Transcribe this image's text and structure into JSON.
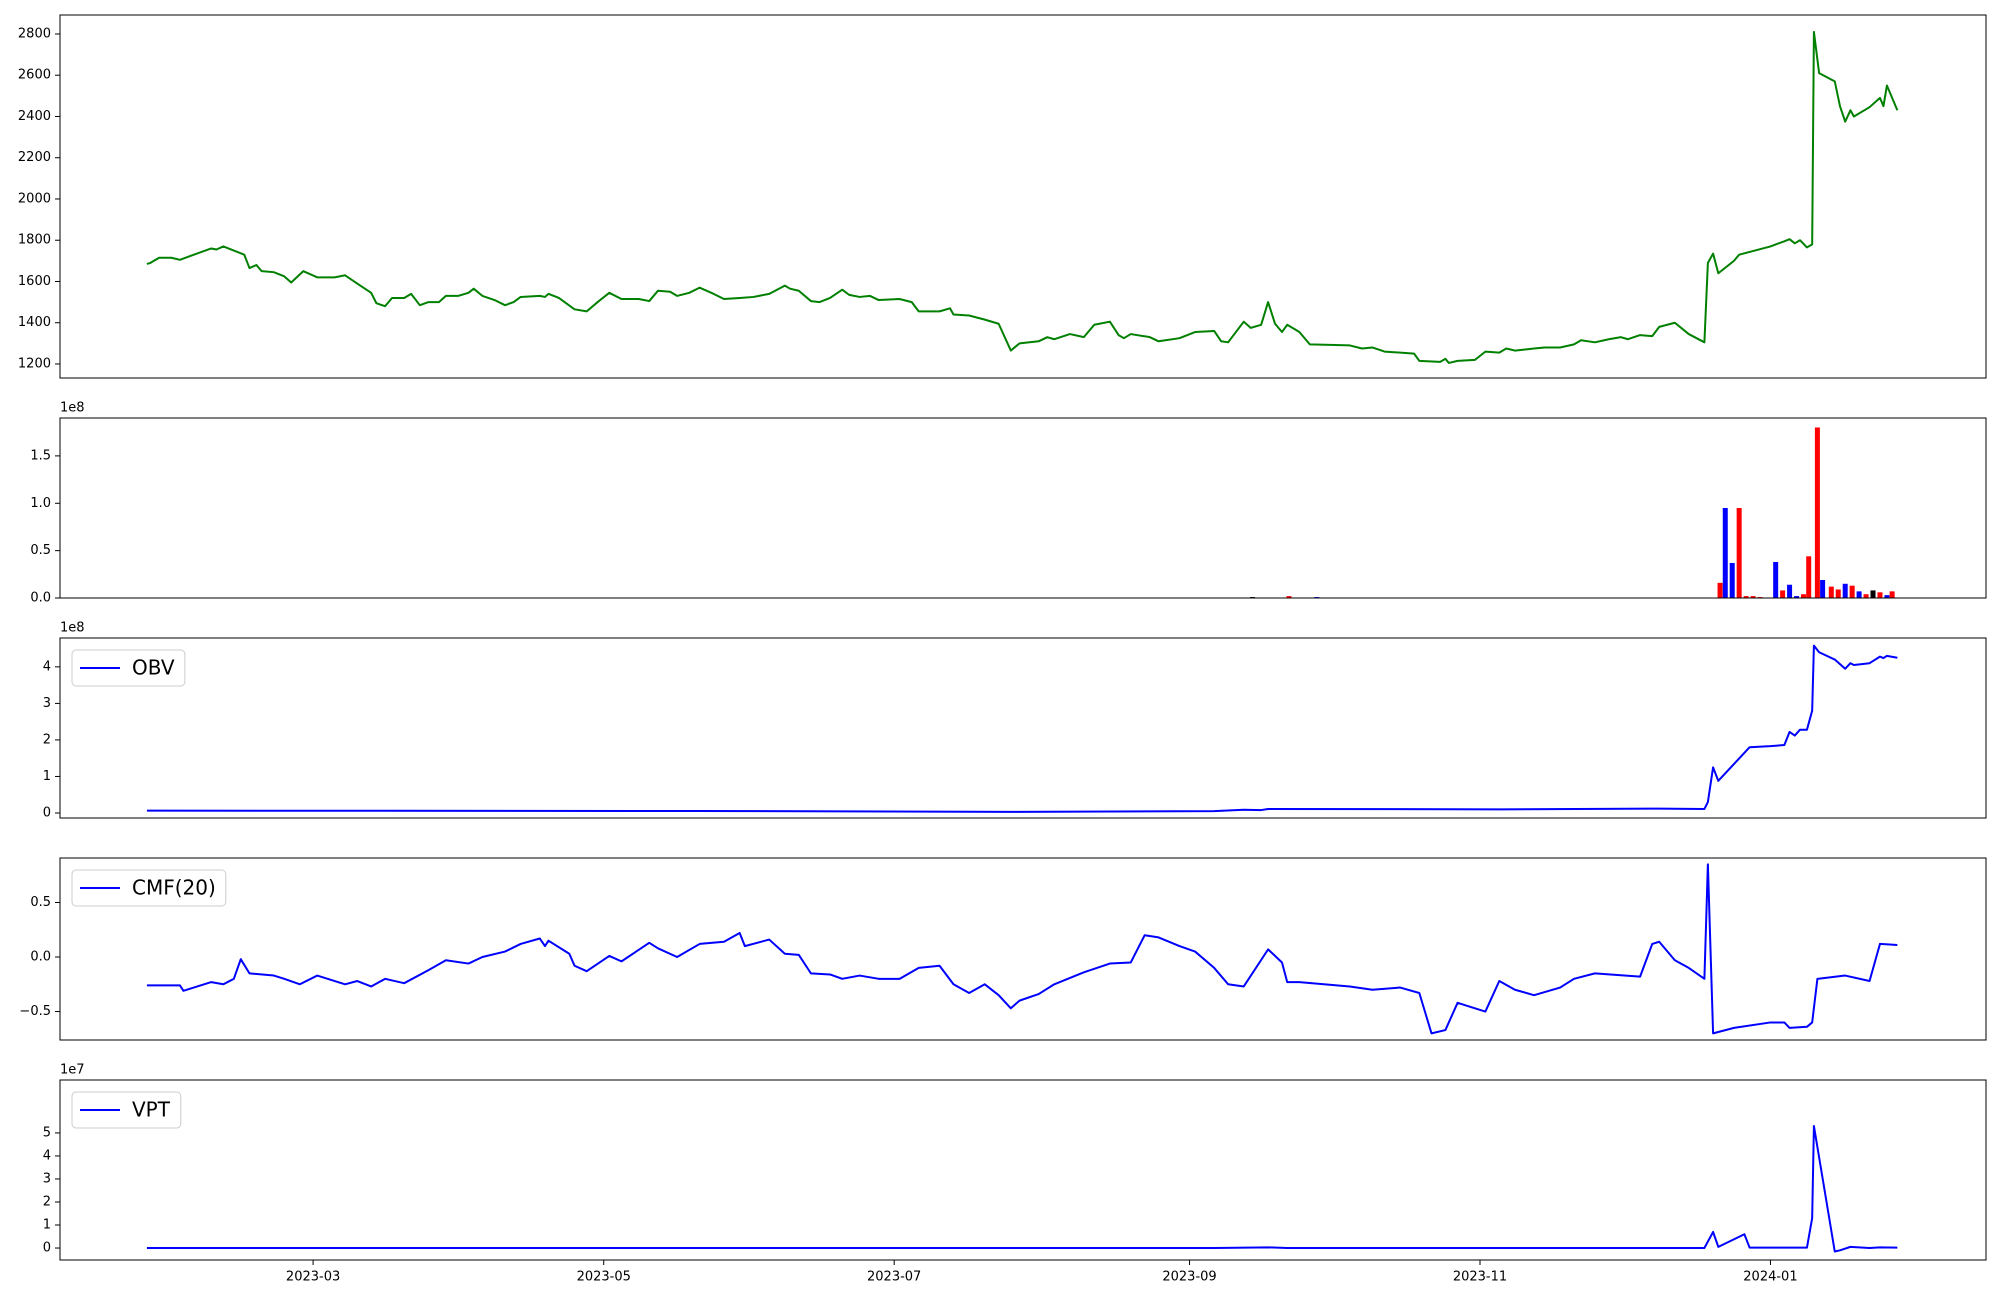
{
  "chart_data": [
    {
      "type": "line",
      "xlim": [
        2023.016,
        2024.124
      ],
      "ylim": [
        1132,
        2892
      ],
      "yticks": [
        1200,
        1400,
        1600,
        1800,
        2000,
        2200,
        2400,
        2600,
        2800
      ],
      "x": [
        2023.066,
        2023.068,
        2023.073,
        2023.08,
        2023.085,
        2023.093,
        2023.103,
        2023.106,
        2023.11,
        2023.122,
        2023.125,
        2023.129,
        2023.132,
        2023.139,
        2023.145,
        2023.149,
        2023.156,
        2023.164,
        2023.174,
        2023.18,
        2023.187,
        2023.195,
        2023.198,
        2023.203,
        2023.207,
        2023.214,
        2023.218,
        2023.223,
        2023.228,
        2023.234,
        2023.238,
        2023.245,
        2023.251,
        2023.254,
        2023.259,
        2023.266,
        2023.272,
        2023.277,
        2023.281,
        2023.292,
        2023.295,
        2023.297,
        2023.303,
        2023.312,
        2023.319,
        2023.326,
        2023.332,
        2023.339,
        2023.349,
        2023.355,
        2023.36,
        2023.367,
        2023.371,
        2023.378,
        2023.384,
        2023.392,
        2023.398,
        2023.407,
        2023.415,
        2023.424,
        2023.433,
        2023.436,
        2023.441,
        2023.448,
        2023.453,
        2023.459,
        2023.466,
        2023.47,
        2023.476,
        2023.482,
        2023.487,
        2023.499,
        2023.506,
        2023.51,
        2023.522,
        2023.528,
        2023.53,
        2023.539,
        2023.548,
        2023.556,
        2023.563,
        2023.568,
        2023.579,
        2023.584,
        2023.588,
        2023.597,
        2023.605,
        2023.611,
        2023.62,
        2023.625,
        2023.628,
        2023.632,
        2023.643,
        2023.648,
        2023.66,
        2023.669,
        2023.68,
        2023.684,
        2023.688,
        2023.697,
        2023.701,
        2023.707,
        2023.711,
        2023.715,
        2023.719,
        2023.722,
        2023.729,
        2023.735,
        2023.758,
        2023.765,
        2023.771,
        2023.778,
        2023.787,
        2023.795,
        2023.798,
        2023.81,
        2023.813,
        2023.815,
        2023.82,
        2023.83,
        2023.836,
        2023.844,
        2023.848,
        2023.853,
        2023.864,
        2023.87,
        2023.879,
        2023.887,
        2023.891,
        2023.899,
        2023.907,
        2023.914,
        2023.918,
        2023.925,
        2023.932,
        2023.936,
        2023.945,
        2023.953,
        2023.962,
        2023.964,
        2023.967,
        2023.97,
        2023.979,
        2023.982,
        2024.0,
        2024.008,
        2024.011,
        2024.014,
        2024.017,
        2024.021,
        2024.024,
        2024.025,
        2024.028,
        2024.037,
        2024.04,
        2024.043,
        2024.046,
        2024.048,
        2024.057,
        2024.063,
        2024.065,
        2024.067,
        2024.073
      ],
      "series": [
        {
          "color": "green",
          "values": [
            1685,
            1690,
            1715,
            1715,
            1705,
            1730,
            1760,
            1755,
            1770,
            1730,
            1665,
            1680,
            1650,
            1645,
            1625,
            1595,
            1650,
            1620,
            1620,
            1630,
            1590,
            1545,
            1495,
            1480,
            1520,
            1520,
            1540,
            1485,
            1500,
            1500,
            1530,
            1530,
            1545,
            1565,
            1530,
            1510,
            1485,
            1500,
            1525,
            1530,
            1525,
            1540,
            1520,
            1465,
            1455,
            1505,
            1545,
            1515,
            1515,
            1505,
            1555,
            1550,
            1530,
            1545,
            1570,
            1540,
            1515,
            1520,
            1525,
            1540,
            1580,
            1565,
            1555,
            1505,
            1500,
            1520,
            1560,
            1535,
            1525,
            1530,
            1510,
            1515,
            1500,
            1455,
            1455,
            1470,
            1440,
            1435,
            1415,
            1395,
            1265,
            1300,
            1310,
            1330,
            1320,
            1345,
            1330,
            1390,
            1405,
            1340,
            1325,
            1345,
            1330,
            1310,
            1325,
            1355,
            1360,
            1310,
            1305,
            1405,
            1375,
            1390,
            1500,
            1395,
            1355,
            1390,
            1355,
            1295,
            1290,
            1275,
            1280,
            1260,
            1255,
            1250,
            1215,
            1210,
            1225,
            1205,
            1215,
            1220,
            1260,
            1255,
            1275,
            1265,
            1275,
            1280,
            1280,
            1295,
            1315,
            1305,
            1320,
            1330,
            1320,
            1340,
            1335,
            1380,
            1400,
            1345,
            1305,
            1690,
            1735,
            1640,
            1700,
            1730,
            1770,
            1795,
            1805,
            1785,
            1800,
            1765,
            1780,
            2810,
            2610,
            2570,
            2450,
            2375,
            2430,
            2400,
            2445,
            2490,
            2450,
            2550,
            2430
          ]
        }
      ]
    },
    {
      "type": "bar",
      "xlim": [
        2023.016,
        2024.124
      ],
      "ylim": [
        0,
        190000000
      ],
      "offset_text": "1e8",
      "yticks": [
        {
          "value": 0,
          "label": "0.0"
        },
        {
          "value": 50000000,
          "label": "0.5"
        },
        {
          "value": 100000000,
          "label": "1.0"
        },
        {
          "value": 150000000,
          "label": "1.5"
        }
      ],
      "x": [
        2023.702,
        2023.723,
        2023.739,
        2023.971,
        2023.974,
        2023.978,
        2023.982,
        2023.986,
        2023.99,
        2023.994,
        2024.003,
        2024.007,
        2024.011,
        2024.015,
        2024.019,
        2024.022,
        2024.027,
        2024.03,
        2024.035,
        2024.039,
        2024.043,
        2024.047,
        2024.051,
        2024.055,
        2024.059,
        2024.063,
        2024.067,
        2024.07
      ],
      "values": [
        1000000,
        2000000,
        1000000,
        16000000,
        95000000,
        37000000,
        95000000,
        2000000,
        2000000,
        1000000,
        38000000,
        8000000,
        14000000,
        2000000,
        4000000,
        44000000,
        180000000,
        19000000,
        12000000,
        9000000,
        15000000,
        13000000,
        7000000,
        4000000,
        8000000,
        6000000,
        3000000,
        7000000
      ],
      "colors": [
        "black",
        "red",
        "blue",
        "red",
        "blue",
        "blue",
        "red",
        "red",
        "red",
        "red",
        "blue",
        "red",
        "blue",
        "blue",
        "red",
        "red",
        "red",
        "blue",
        "red",
        "red",
        "blue",
        "red",
        "blue",
        "red",
        "black",
        "red",
        "blue",
        "red"
      ]
    },
    {
      "type": "line",
      "xlim": [
        2023.016,
        2024.124
      ],
      "ylim": [
        -13700000,
        479000000
      ],
      "offset_text": "1e8",
      "legend": "upper left",
      "yticks": [
        {
          "value": 0,
          "label": "0"
        },
        {
          "value": 100000000,
          "label": "1"
        },
        {
          "value": 200000000,
          "label": "2"
        },
        {
          "value": 300000000,
          "label": "3"
        },
        {
          "value": 400000000,
          "label": "4"
        }
      ],
      "x": [
        2023.066,
        2023.384,
        2023.563,
        2023.68,
        2023.697,
        2023.707,
        2023.711,
        2023.844,
        2023.936,
        2023.962,
        2023.964,
        2023.967,
        2023.97,
        2023.988,
        2024.0,
        2024.008,
        2024.011,
        2024.014,
        2024.017,
        2024.021,
        2024.024,
        2024.025,
        2024.028,
        2024.037,
        2024.043,
        2024.046,
        2024.048,
        2024.057,
        2024.063,
        2024.065,
        2024.067,
        2024.073
      ],
      "series": [
        {
          "name": "OBV",
          "color": "blue",
          "values": [
            6500000,
            5500000,
            3000000,
            5000000,
            9000000,
            8000000,
            11000000,
            10000000,
            12000000,
            11000000,
            30000000,
            125000000,
            88000000,
            180000000,
            183000000,
            186000000,
            222000000,
            212000000,
            228000000,
            228000000,
            280000000,
            458000000,
            440000000,
            420000000,
            395000000,
            410000000,
            405000000,
            410000000,
            428000000,
            424000000,
            430000000,
            425000000
          ]
        }
      ]
    },
    {
      "type": "line",
      "xlim": [
        2023.016,
        2024.124
      ],
      "ylim": [
        -0.761,
        0.908
      ],
      "legend": "upper left",
      "yticks": [
        {
          "value": -0.5,
          "label": "−0.5"
        },
        {
          "value": 0,
          "label": "0.0"
        },
        0.5
      ],
      "x": [
        2023.066,
        2023.085,
        2023.087,
        2023.103,
        2023.11,
        2023.116,
        2023.12,
        2023.125,
        2023.139,
        2023.145,
        2023.154,
        2023.164,
        2023.18,
        2023.187,
        2023.195,
        2023.203,
        2023.214,
        2023.228,
        2023.238,
        2023.251,
        2023.259,
        2023.272,
        2023.281,
        2023.292,
        2023.295,
        2023.297,
        2023.309,
        2023.312,
        2023.319,
        2023.332,
        2023.339,
        2023.355,
        2023.36,
        2023.371,
        2023.384,
        2023.398,
        2023.407,
        2023.41,
        2023.424,
        2023.433,
        2023.441,
        2023.448,
        2023.459,
        2023.466,
        2023.476,
        2023.487,
        2023.499,
        2023.51,
        2023.522,
        2023.53,
        2023.539,
        2023.548,
        2023.556,
        2023.563,
        2023.568,
        2023.579,
        2023.588,
        2023.605,
        2023.62,
        2023.632,
        2023.64,
        2023.648,
        2023.66,
        2023.669,
        2023.68,
        2023.688,
        2023.697,
        2023.711,
        2023.719,
        2023.722,
        2023.729,
        2023.758,
        2023.771,
        2023.787,
        2023.798,
        2023.805,
        2023.813,
        2023.82,
        2023.83,
        2023.836,
        2023.844,
        2023.853,
        2023.864,
        2023.879,
        2023.887,
        2023.899,
        2023.925,
        2023.932,
        2023.936,
        2023.945,
        2023.953,
        2023.962,
        2023.964,
        2023.967,
        2023.979,
        2024.0,
        2024.008,
        2024.011,
        2024.021,
        2024.024,
        2024.027,
        2024.043,
        2024.057,
        2024.063,
        2024.073
      ],
      "series": [
        {
          "name": "CMF(20)",
          "color": "blue",
          "values": [
            -0.26,
            -0.26,
            -0.31,
            -0.23,
            -0.25,
            -0.2,
            -0.02,
            -0.15,
            -0.17,
            -0.2,
            -0.25,
            -0.17,
            -0.25,
            -0.22,
            -0.27,
            -0.2,
            -0.24,
            -0.12,
            -0.03,
            -0.06,
            0.0,
            0.05,
            0.12,
            0.17,
            0.1,
            0.15,
            0.03,
            -0.08,
            -0.13,
            0.01,
            -0.04,
            0.13,
            0.08,
            0.0,
            0.12,
            0.14,
            0.22,
            0.1,
            0.16,
            0.03,
            0.02,
            -0.15,
            -0.16,
            -0.2,
            -0.17,
            -0.2,
            -0.2,
            -0.1,
            -0.08,
            -0.25,
            -0.33,
            -0.25,
            -0.35,
            -0.47,
            -0.4,
            -0.34,
            -0.25,
            -0.14,
            -0.06,
            -0.05,
            0.2,
            0.18,
            0.1,
            0.05,
            -0.1,
            -0.25,
            -0.27,
            0.07,
            -0.05,
            -0.23,
            -0.23,
            -0.27,
            -0.3,
            -0.28,
            -0.33,
            -0.7,
            -0.67,
            -0.42,
            -0.47,
            -0.5,
            -0.22,
            -0.3,
            -0.35,
            -0.28,
            -0.2,
            -0.15,
            -0.18,
            0.12,
            0.14,
            -0.03,
            -0.1,
            -0.2,
            0.85,
            -0.7,
            -0.65,
            -0.6,
            -0.6,
            -0.65,
            -0.64,
            -0.6,
            -0.2,
            -0.17,
            -0.22,
            0.12,
            0.11
          ]
        }
      ]
    },
    {
      "type": "line",
      "xlim": [
        2023.016,
        2024.124
      ],
      "ylim": [
        -5200000,
        73000000
      ],
      "offset_text": "1e7",
      "legend": "upper left",
      "yticks": [
        {
          "value": 0,
          "label": "0"
        },
        {
          "value": 10000000,
          "label": "1"
        },
        {
          "value": 20000000,
          "label": "2"
        },
        {
          "value": 30000000,
          "label": "3"
        },
        {
          "value": 40000000,
          "label": "4"
        },
        {
          "value": 50000000,
          "label": "5"
        }
      ],
      "xticks": [
        {
          "value": 2023.1616,
          "label": "2023-03"
        },
        {
          "value": 2023.3288,
          "label": "2023-05"
        },
        {
          "value": 2023.4959,
          "label": "2023-07"
        },
        {
          "value": 2023.6658,
          "label": "2023-09"
        },
        {
          "value": 2023.8329,
          "label": "2023-11"
        },
        {
          "value": 2024.0,
          "label": "2024-01"
        }
      ],
      "x": [
        2023.066,
        2023.68,
        2023.711,
        2023.722,
        2023.962,
        2023.967,
        2023.97,
        2023.985,
        2023.988,
        2024.021,
        2024.024,
        2024.025,
        2024.037,
        2024.04,
        2024.046,
        2024.057,
        2024.063,
        2024.073
      ],
      "series": [
        {
          "name": "VPT",
          "color": "blue",
          "values": [
            0,
            0,
            300000,
            0,
            0,
            7000000,
            500000,
            6000000,
            200000,
            200000,
            13000000,
            53000000,
            -1500000,
            -1000000,
            500000,
            0,
            300000,
            200000
          ]
        }
      ]
    }
  ]
}
